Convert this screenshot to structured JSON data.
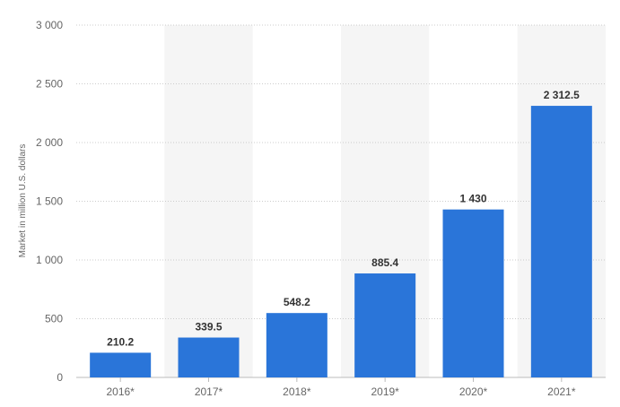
{
  "chart_data": {
    "type": "bar",
    "title": "",
    "xlabel": "",
    "ylabel": "Market in million U.S. dollars",
    "categories": [
      "2016*",
      "2017*",
      "2018*",
      "2019*",
      "2020*",
      "2021*"
    ],
    "values": [
      210.2,
      339.5,
      548.2,
      885.4,
      1430,
      2312.5
    ],
    "data_labels": [
      "210.2",
      "339.5",
      "548.2",
      "885.4",
      "1 430",
      "2 312.5"
    ],
    "ylim": [
      0,
      3000
    ],
    "yticks": [
      0,
      500,
      1000,
      1500,
      2000,
      2500,
      3000
    ],
    "ytick_labels": [
      "0",
      "500",
      "1 000",
      "1 500",
      "2 000",
      "2 500",
      "3 000"
    ],
    "grid": true,
    "legend": "none",
    "colors": {
      "bar": "#2a75d9",
      "band": "#f5f5f5",
      "grid": "#cccccc",
      "text": "#666666",
      "label": "#333333"
    }
  }
}
